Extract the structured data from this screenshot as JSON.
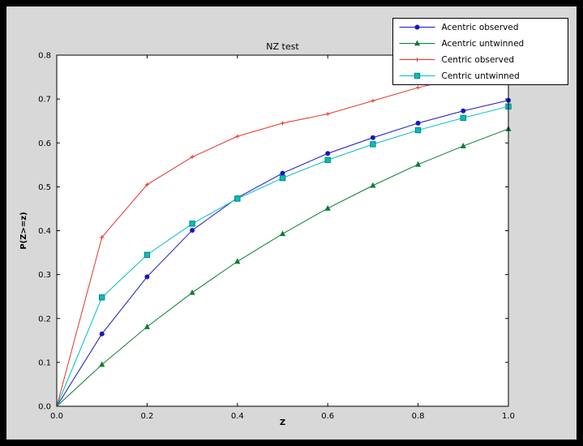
{
  "window": {
    "frame_color": "#000000",
    "figure_background": "#d8d8d8",
    "plot_background": "#ffffff"
  },
  "chart_data": {
    "type": "line",
    "title": "NZ test",
    "xlabel": "Z",
    "ylabel": "P(Z>=z)",
    "xlim": [
      0.0,
      1.0
    ],
    "ylim": [
      0.0,
      0.8
    ],
    "xticks": [
      0.0,
      0.2,
      0.4,
      0.6,
      0.8,
      1.0
    ],
    "yticks": [
      0.0,
      0.1,
      0.2,
      0.3,
      0.4,
      0.5,
      0.6,
      0.7,
      0.8
    ],
    "grid": false,
    "legend_position": "upper right",
    "x": [
      0.0,
      0.1,
      0.2,
      0.3,
      0.4,
      0.5,
      0.6,
      0.7,
      0.8,
      0.9,
      1.0
    ],
    "series": [
      {
        "name": "Acentric observed",
        "color": "#1515c8",
        "marker": "circle",
        "values": [
          0.0,
          0.165,
          0.295,
          0.401,
          0.475,
          0.531,
          0.576,
          0.612,
          0.645,
          0.673,
          0.697
        ]
      },
      {
        "name": "Acentric untwinned",
        "color": "#0a7d32",
        "marker": "triangle",
        "values": [
          0.0,
          0.095,
          0.181,
          0.259,
          0.33,
          0.393,
          0.451,
          0.503,
          0.551,
          0.593,
          0.632
        ]
      },
      {
        "name": "Centric observed",
        "color": "#e5352b",
        "marker": "plus",
        "values": [
          0.0,
          0.385,
          0.505,
          0.568,
          0.615,
          0.645,
          0.666,
          0.696,
          0.726,
          0.75,
          0.768
        ]
      },
      {
        "name": "Centric untwinned",
        "color": "#00bfbf",
        "marker": "square",
        "values": [
          0.0,
          0.248,
          0.345,
          0.416,
          0.473,
          0.52,
          0.561,
          0.597,
          0.629,
          0.657,
          0.683
        ]
      }
    ]
  }
}
